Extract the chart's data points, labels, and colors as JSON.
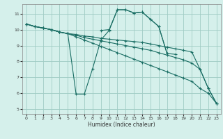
{
  "bg_color": "#d5f0eb",
  "grid_color": "#a0ccc4",
  "line_color": "#1a6e64",
  "xlabel": "Humidex (Indice chaleur)",
  "xlim": [
    -0.5,
    23.5
  ],
  "ylim": [
    4.7,
    11.6
  ],
  "yticks": [
    5,
    6,
    7,
    8,
    9,
    10,
    11
  ],
  "xticks": [
    0,
    1,
    2,
    3,
    4,
    5,
    6,
    7,
    8,
    9,
    10,
    11,
    12,
    13,
    14,
    15,
    16,
    17,
    18,
    19,
    20,
    21,
    22,
    23
  ],
  "lines": [
    {
      "x": [
        0,
        1,
        2,
        3,
        4,
        5,
        6,
        7,
        8,
        9,
        10,
        11,
        12,
        13,
        14,
        15,
        16,
        17,
        18,
        19,
        20,
        21,
        22,
        23
      ],
      "y": [
        10.35,
        10.2,
        10.1,
        10.0,
        9.85,
        9.75,
        5.95,
        5.95,
        7.55,
        9.35,
        9.95,
        11.25,
        11.25,
        11.05,
        11.1,
        10.65,
        10.2,
        8.5,
        null,
        null,
        null,
        null,
        null,
        null
      ]
    },
    {
      "x": [
        9,
        10,
        11,
        12,
        13,
        14,
        15,
        16,
        17,
        18,
        19,
        20,
        21,
        22,
        23
      ],
      "y": [
        9.95,
        10.0,
        11.25,
        11.25,
        11.05,
        11.1,
        10.65,
        10.2,
        8.5,
        8.45,
        null,
        null,
        null,
        null,
        null
      ]
    },
    {
      "x": [
        0,
        1,
        2,
        3,
        4,
        5,
        6,
        7,
        8,
        9,
        10,
        11,
        12,
        13,
        14,
        15,
        16,
        17,
        18,
        19,
        20,
        21,
        22,
        23
      ],
      "y": [
        10.35,
        10.2,
        10.1,
        10.0,
        9.85,
        9.75,
        9.7,
        9.6,
        9.55,
        9.45,
        9.4,
        9.35,
        9.3,
        9.25,
        9.2,
        9.1,
        9.0,
        8.9,
        8.8,
        8.7,
        8.6,
        7.5,
        6.3,
        5.35
      ]
    },
    {
      "x": [
        0,
        1,
        2,
        3,
        4,
        5,
        6,
        7,
        8,
        9,
        10,
        11,
        12,
        13,
        14,
        15,
        16,
        17,
        18,
        19,
        20,
        21,
        22,
        23
      ],
      "y": [
        10.35,
        10.2,
        10.1,
        10.0,
        9.85,
        9.75,
        9.65,
        9.5,
        9.4,
        9.3,
        9.2,
        9.1,
        9.0,
        8.9,
        8.8,
        8.7,
        8.55,
        8.4,
        8.25,
        8.1,
        7.9,
        7.5,
        6.3,
        5.35
      ]
    },
    {
      "x": [
        0,
        1,
        2,
        3,
        4,
        5,
        6,
        7,
        8,
        9,
        10,
        11,
        12,
        13,
        14,
        15,
        16,
        17,
        18,
        19,
        20,
        21,
        22,
        23
      ],
      "y": [
        10.35,
        10.2,
        10.1,
        10.0,
        9.85,
        9.75,
        9.55,
        9.35,
        9.15,
        8.95,
        8.75,
        8.55,
        8.35,
        8.15,
        7.95,
        7.75,
        7.55,
        7.35,
        7.15,
        6.95,
        6.75,
        6.3,
        6.0,
        5.35
      ]
    }
  ]
}
